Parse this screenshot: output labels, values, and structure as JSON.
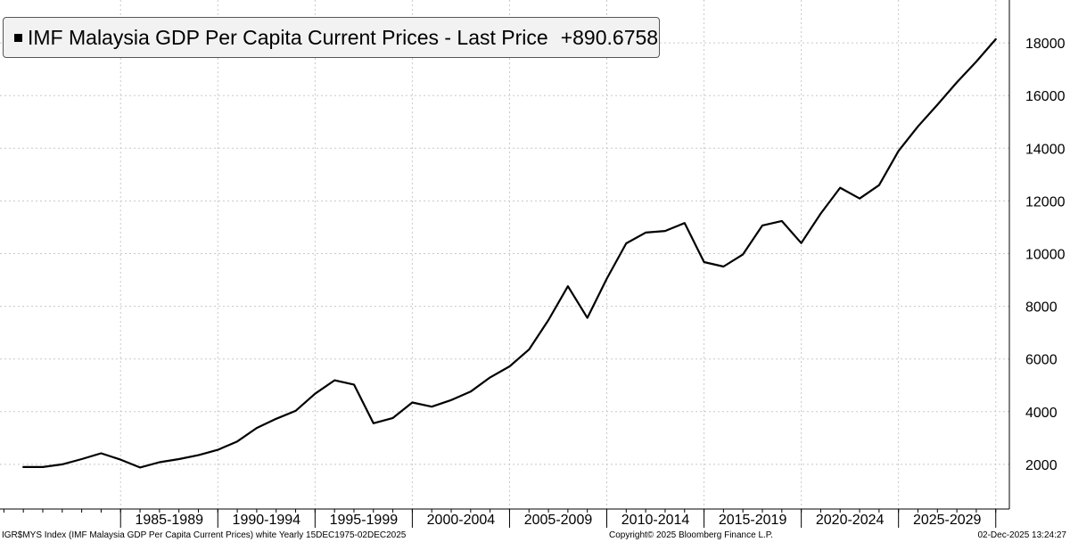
{
  "legend": {
    "label": "IMF Malaysia GDP Per Capita Current Prices - Last Price",
    "value": "+890.6758",
    "line_color": "#000000"
  },
  "footer": {
    "left": "IGR$MYS Index (IMF Malaysia GDP Per Capita Current Prices) white Yearly 15DEC1975-02DEC2025",
    "center": "Copyright© 2025 Bloomberg Finance L.P.",
    "right": "02-Dec-2025 13:24:27"
  },
  "chart_data": {
    "type": "line",
    "title": "",
    "xlabel": "",
    "ylabel": "",
    "x_tick_labels": [
      "1985-1989",
      "1990-1994",
      "1995-1999",
      "2000-2004",
      "2005-2009",
      "2010-2014",
      "2015-2019",
      "2020-2024",
      "2025-2029"
    ],
    "y_ticks": [
      2000,
      4000,
      6000,
      8000,
      10000,
      12000,
      14000,
      16000,
      18000
    ],
    "xlim": [
      1980,
      2030
    ],
    "ylim": [
      0,
      19500
    ],
    "grid": true,
    "legend_position": "top-left",
    "series": [
      {
        "x": [
          1980,
          1981,
          1982,
          1983,
          1984,
          1985,
          1986,
          1987,
          1988,
          1989,
          1990,
          1991,
          1992,
          1993,
          1994,
          1995,
          1996,
          1997,
          1998,
          1999,
          2000,
          2001,
          2002,
          2003,
          2004,
          2005,
          2006,
          2007,
          2008,
          2009,
          2010,
          2011,
          2012,
          2013,
          2014,
          2015,
          2016,
          2017,
          2018,
          2019,
          2020,
          2021,
          2022,
          2023,
          2024,
          2025,
          2026,
          2027,
          2028,
          2029,
          2030
        ],
        "values": [
          1900,
          1900,
          2000,
          2200,
          2420,
          2180,
          1880,
          2080,
          2200,
          2350,
          2550,
          2870,
          3380,
          3730,
          4030,
          4680,
          5190,
          5030,
          3560,
          3760,
          4350,
          4190,
          4440,
          4760,
          5300,
          5720,
          6360,
          7480,
          8760,
          7560,
          9050,
          10390,
          10800,
          10860,
          11160,
          9680,
          9510,
          9970,
          11070,
          11240,
          10400,
          11520,
          12500,
          12090,
          12600,
          13900,
          14830,
          15650,
          16500,
          17290,
          18140
        ]
      }
    ]
  }
}
